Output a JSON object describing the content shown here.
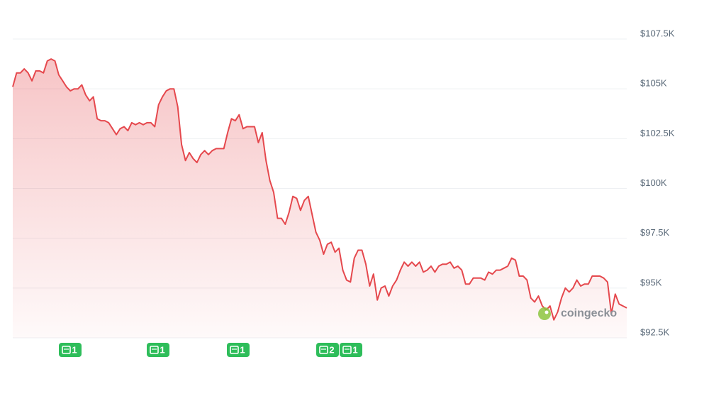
{
  "chart_data": {
    "type": "line",
    "series": [
      {
        "color": "#e5484d",
        "values": [
          105100,
          105800,
          105800,
          106000,
          105800,
          105400,
          105900,
          105900,
          105800,
          106400,
          106500,
          106400,
          105700,
          105400,
          105100,
          104900,
          105000,
          105000,
          105200,
          104700,
          104400,
          104600,
          103500,
          103400,
          103400,
          103300,
          103000,
          102700,
          103000,
          103100,
          102900,
          103300,
          103200,
          103300,
          103200,
          103300,
          103300,
          103100,
          104200,
          104600,
          104900,
          105000,
          105000,
          104100,
          102200,
          101400,
          101800,
          101500,
          101300,
          101700,
          101900,
          101700,
          101900,
          102000,
          102000,
          102000,
          102800,
          103500,
          103400,
          103700,
          103000,
          103100,
          103100,
          103100,
          102300,
          102800,
          101400,
          100400,
          99800,
          98500,
          98500,
          98200,
          98800,
          99600,
          99500,
          98900,
          99400,
          99600,
          98700,
          97800,
          97400,
          96700,
          97200,
          97300,
          96800,
          97000,
          95900,
          95400,
          95300,
          96500,
          96900,
          96900,
          96200,
          95100,
          95700,
          94400,
          95000,
          95100,
          94600,
          95100,
          95400,
          95900,
          96300,
          96100,
          96300,
          96100,
          96300,
          95800,
          95900,
          96100,
          95800,
          96100,
          96200,
          96200,
          96300,
          96000,
          96100,
          95900,
          95200,
          95200,
          95500,
          95500,
          95500,
          95400,
          95800,
          95700,
          95900,
          95900,
          96000,
          96100,
          96500,
          96400,
          95600,
          95600,
          95400,
          94500,
          94300,
          94600,
          94100,
          93900,
          94100,
          93400,
          93800,
          94500,
          95000,
          94800,
          95000,
          95400,
          95100,
          95200,
          95200,
          95600,
          95600,
          95600,
          95500,
          95300,
          93700,
          94700,
          94200,
          94100,
          94000
        ]
      }
    ],
    "ylim": [
      92500,
      107500
    ],
    "yticks": [
      {
        "value": 92500,
        "label": "$92.5K"
      },
      {
        "value": 95000,
        "label": "$95K"
      },
      {
        "value": 97500,
        "label": "$97.5K"
      },
      {
        "value": 100000,
        "label": "$100K"
      },
      {
        "value": 102500,
        "label": "$102.5K"
      },
      {
        "value": 105000,
        "label": "$105K"
      },
      {
        "value": 107500,
        "label": "$107.5K"
      }
    ],
    "grid": true,
    "events": [
      "1",
      "1",
      "1",
      "2",
      "1"
    ],
    "watermark": "coingecko"
  }
}
